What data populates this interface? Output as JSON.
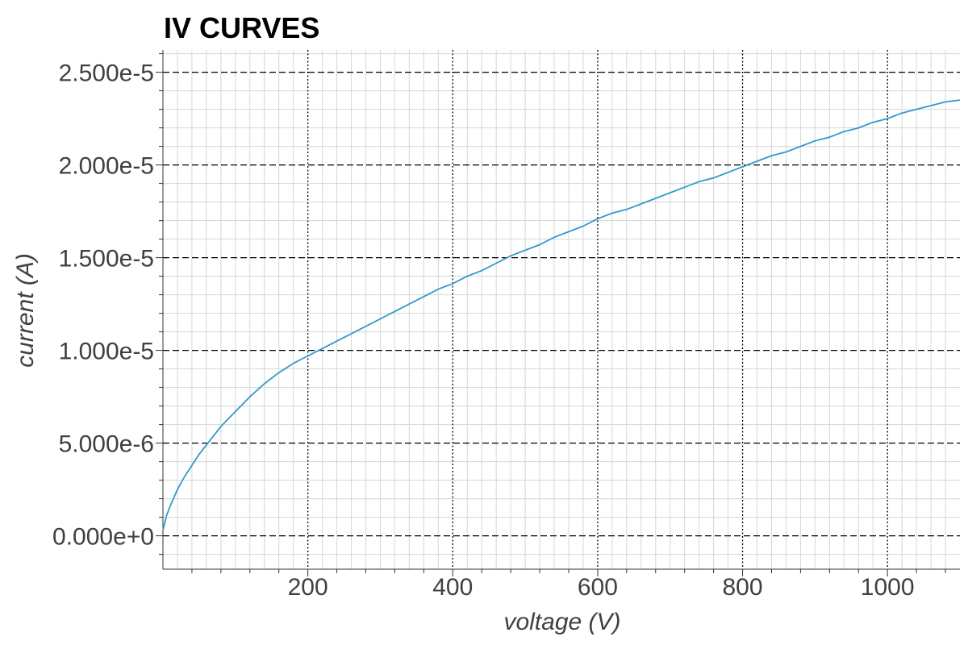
{
  "chart_data": {
    "type": "line",
    "title": "IV CURVES",
    "xlabel": "voltage (V)",
    "ylabel": "current (A)",
    "xlim": [
      0,
      1100
    ],
    "ylim": [
      -1.8e-06,
      2.62e-05
    ],
    "x_ticks": [
      {
        "value": 200,
        "label": "200"
      },
      {
        "value": 400,
        "label": "400"
      },
      {
        "value": 600,
        "label": "600"
      },
      {
        "value": 800,
        "label": "800"
      },
      {
        "value": 1000,
        "label": "1000"
      }
    ],
    "y_ticks": [
      {
        "value": 0,
        "label": "0.000e+0"
      },
      {
        "value": 5e-06,
        "label": "5.000e-6"
      },
      {
        "value": 1e-05,
        "label": "1.000e-5"
      },
      {
        "value": 1.5e-05,
        "label": "1.500e-5"
      },
      {
        "value": 2e-05,
        "label": "2.000e-5"
      },
      {
        "value": 2.5e-05,
        "label": "2.500e-5"
      }
    ],
    "grid": true,
    "legend": "none",
    "series": [
      {
        "color": "#3399cc",
        "x": [
          0,
          5,
          10,
          20,
          30,
          40,
          50,
          60,
          80,
          100,
          120,
          140,
          160,
          180,
          200,
          220,
          240,
          260,
          280,
          300,
          320,
          340,
          360,
          380,
          400,
          420,
          440,
          460,
          480,
          500,
          520,
          540,
          560,
          580,
          600,
          620,
          640,
          660,
          680,
          700,
          720,
          740,
          760,
          780,
          800,
          820,
          840,
          860,
          880,
          900,
          920,
          940,
          960,
          980,
          1000,
          1020,
          1040,
          1060,
          1080,
          1100
        ],
        "y": [
          3e-07,
          1.1e-06,
          1.6e-06,
          2.5e-06,
          3.2e-06,
          3.8e-06,
          4.4e-06,
          4.9e-06,
          5.9e-06,
          6.7e-06,
          7.5e-06,
          8.2e-06,
          8.8e-06,
          9.3e-06,
          9.7e-06,
          1.01e-05,
          1.05e-05,
          1.09e-05,
          1.13e-05,
          1.17e-05,
          1.21e-05,
          1.25e-05,
          1.29e-05,
          1.33e-05,
          1.36e-05,
          1.4e-05,
          1.43e-05,
          1.47e-05,
          1.51e-05,
          1.54e-05,
          1.57e-05,
          1.61e-05,
          1.64e-05,
          1.67e-05,
          1.71e-05,
          1.74e-05,
          1.76e-05,
          1.79e-05,
          1.82e-05,
          1.85e-05,
          1.88e-05,
          1.91e-05,
          1.93e-05,
          1.96e-05,
          1.99e-05,
          2.02e-05,
          2.05e-05,
          2.07e-05,
          2.1e-05,
          2.13e-05,
          2.15e-05,
          2.18e-05,
          2.2e-05,
          2.23e-05,
          2.25e-05,
          2.28e-05,
          2.3e-05,
          2.32e-05,
          2.34e-05,
          2.35e-05
        ]
      }
    ]
  }
}
